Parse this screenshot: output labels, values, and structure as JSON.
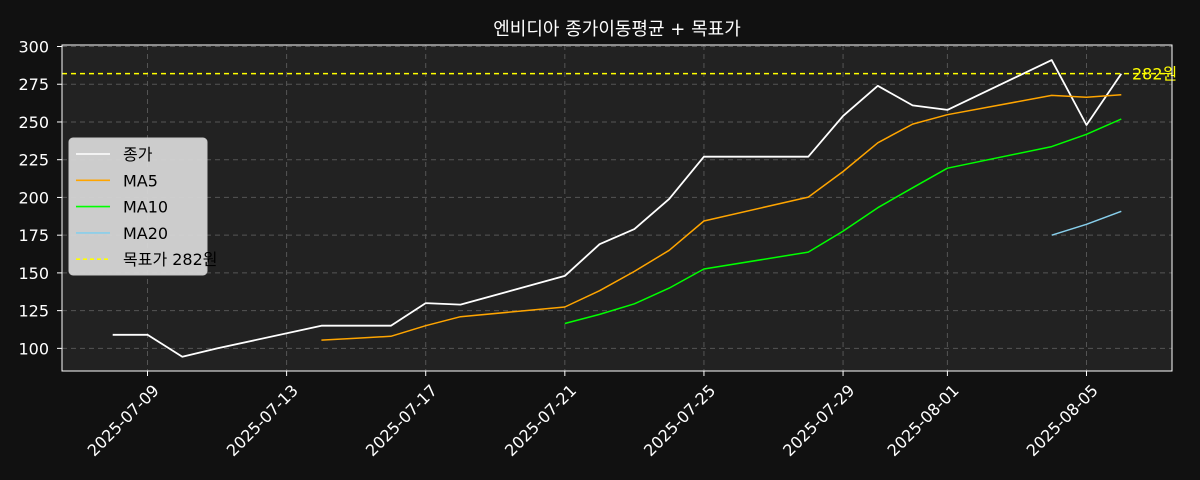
{
  "chart_data": {
    "type": "line",
    "title": "엔비디아 종가이동평균 + 목표가",
    "xlabel": "",
    "ylabel": "",
    "x_ticks": [
      "2025-07-09",
      "2025-07-13",
      "2025-07-17",
      "2025-07-21",
      "2025-07-25",
      "2025-07-29",
      "2025-08-01",
      "2025-08-05"
    ],
    "y_ticks": [
      100,
      125,
      150,
      175,
      200,
      225,
      250,
      275,
      300
    ],
    "xlim": [
      "2025-07-06 13:00",
      "2025-08-07 11:00"
    ],
    "ylim": [
      85,
      301
    ],
    "grid": true,
    "legend_position": "center-left",
    "background": "#222222",
    "series": [
      {
        "name": "종가",
        "color": "#ffffff",
        "points": [
          [
            "2025-07-08",
            109
          ],
          [
            "2025-07-09",
            109
          ],
          [
            "2025-07-10",
            94.5
          ],
          [
            "2025-07-11",
            100
          ],
          [
            "2025-07-14",
            115
          ],
          [
            "2025-07-15",
            115
          ],
          [
            "2025-07-16",
            115
          ],
          [
            "2025-07-17",
            130
          ],
          [
            "2025-07-18",
            129
          ],
          [
            "2025-07-21",
            148
          ],
          [
            "2025-07-22",
            169
          ],
          [
            "2025-07-23",
            179
          ],
          [
            "2025-07-24",
            199
          ],
          [
            "2025-07-25",
            227
          ],
          [
            "2025-07-28",
            227
          ],
          [
            "2025-07-29",
            254
          ],
          [
            "2025-07-30",
            274
          ],
          [
            "2025-07-31",
            261
          ],
          [
            "2025-08-01",
            258
          ],
          [
            "2025-08-04",
            291
          ],
          [
            "2025-08-05",
            248
          ],
          [
            "2025-08-06",
            282
          ]
        ]
      },
      {
        "name": "MA5",
        "color": "#ffa500",
        "points": [
          [
            "2025-07-14",
            105.5
          ],
          [
            "2025-07-15",
            106.7
          ],
          [
            "2025-07-16",
            108
          ],
          [
            "2025-07-17",
            115
          ],
          [
            "2025-07-18",
            121
          ],
          [
            "2025-07-21",
            127.4
          ],
          [
            "2025-07-22",
            138.2
          ],
          [
            "2025-07-23",
            151
          ],
          [
            "2025-07-24",
            165
          ],
          [
            "2025-07-25",
            184.4
          ],
          [
            "2025-07-28",
            200.2
          ],
          [
            "2025-07-29",
            217.2
          ],
          [
            "2025-07-30",
            236.2
          ],
          [
            "2025-07-31",
            248.6
          ],
          [
            "2025-08-01",
            254.8
          ],
          [
            "2025-08-04",
            267.6
          ],
          [
            "2025-08-05",
            266.4
          ],
          [
            "2025-08-06",
            268
          ]
        ]
      },
      {
        "name": "MA10",
        "color": "#00ff00",
        "points": [
          [
            "2025-07-21",
            116.5
          ],
          [
            "2025-07-22",
            122.5
          ],
          [
            "2025-07-23",
            129.5
          ],
          [
            "2025-07-24",
            139.9
          ],
          [
            "2025-07-25",
            152.6
          ],
          [
            "2025-07-28",
            163.8
          ],
          [
            "2025-07-29",
            177.7
          ],
          [
            "2025-07-30",
            193.2
          ],
          [
            "2025-07-31",
            206.4
          ],
          [
            "2025-08-01",
            219.4
          ],
          [
            "2025-08-04",
            233.7
          ],
          [
            "2025-08-05",
            241.8
          ],
          [
            "2025-08-06",
            252
          ]
        ]
      },
      {
        "name": "MA20",
        "color": "#87ceeb",
        "points": [
          [
            "2025-08-04",
            175
          ],
          [
            "2025-08-05",
            182.2
          ],
          [
            "2025-08-06",
            190.8
          ]
        ]
      }
    ],
    "reference_lines": [
      {
        "name": "목표가 282원",
        "value": 282,
        "color": "#ffff00",
        "style": "dashed",
        "annotation": "282원"
      }
    ]
  }
}
